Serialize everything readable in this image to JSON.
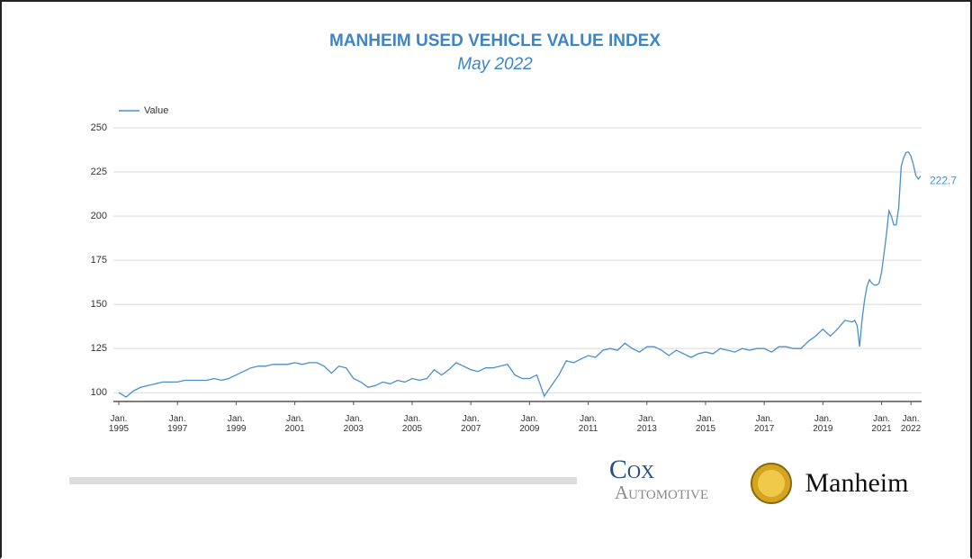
{
  "chart_data": {
    "type": "line",
    "title": "MANHEIM USED VEHICLE VALUE INDEX",
    "subtitle": "May 2022",
    "x": [
      "1995-01",
      "1995-04",
      "1995-07",
      "1995-10",
      "1996-01",
      "1996-04",
      "1996-07",
      "1996-10",
      "1997-01",
      "1997-04",
      "1997-07",
      "1997-10",
      "1998-01",
      "1998-04",
      "1998-07",
      "1998-10",
      "1999-01",
      "1999-04",
      "1999-07",
      "1999-10",
      "2000-01",
      "2000-04",
      "2000-07",
      "2000-10",
      "2001-01",
      "2001-04",
      "2001-07",
      "2001-10",
      "2002-01",
      "2002-04",
      "2002-07",
      "2002-10",
      "2003-01",
      "2003-04",
      "2003-07",
      "2003-10",
      "2004-01",
      "2004-04",
      "2004-07",
      "2004-10",
      "2005-01",
      "2005-04",
      "2005-07",
      "2005-10",
      "2006-01",
      "2006-04",
      "2006-07",
      "2006-10",
      "2007-01",
      "2007-04",
      "2007-07",
      "2007-10",
      "2008-01",
      "2008-04",
      "2008-07",
      "2008-10",
      "2009-01",
      "2009-04",
      "2009-07",
      "2009-10",
      "2010-01",
      "2010-04",
      "2010-07",
      "2010-10",
      "2011-01",
      "2011-04",
      "2011-07",
      "2011-10",
      "2012-01",
      "2012-04",
      "2012-07",
      "2012-10",
      "2013-01",
      "2013-04",
      "2013-07",
      "2013-10",
      "2014-01",
      "2014-04",
      "2014-07",
      "2014-10",
      "2015-01",
      "2015-04",
      "2015-07",
      "2015-10",
      "2016-01",
      "2016-04",
      "2016-07",
      "2016-10",
      "2017-01",
      "2017-04",
      "2017-07",
      "2017-10",
      "2018-01",
      "2018-04",
      "2018-07",
      "2018-10",
      "2019-01",
      "2019-04",
      "2019-07",
      "2019-10",
      "2020-01",
      "2020-02",
      "2020-03",
      "2020-04",
      "2020-05",
      "2020-06",
      "2020-07",
      "2020-08",
      "2020-09",
      "2020-10",
      "2020-11",
      "2020-12",
      "2021-01",
      "2021-02",
      "2021-03",
      "2021-04",
      "2021-05",
      "2021-06",
      "2021-07",
      "2021-08",
      "2021-09",
      "2021-10",
      "2021-11",
      "2021-12",
      "2022-01",
      "2022-02",
      "2022-03",
      "2022-04",
      "2022-05"
    ],
    "series": [
      {
        "name": "Value",
        "color": "#4a8fc9",
        "values": [
          100,
          97.5,
          101,
          103,
          104,
          105,
          106,
          106,
          106,
          107,
          107,
          107,
          107,
          108,
          107,
          108,
          110,
          112,
          114,
          115,
          115,
          116,
          116,
          116,
          117,
          116,
          117,
          117,
          115,
          111,
          115,
          114,
          108,
          106,
          103,
          104,
          106,
          105,
          107,
          106,
          108,
          107,
          108,
          113,
          110,
          113,
          117,
          115,
          113,
          112,
          114,
          114,
          115,
          116,
          110,
          108,
          108,
          110,
          98,
          104,
          110,
          118,
          117,
          119,
          121,
          120,
          124,
          125,
          124,
          128,
          125,
          123,
          126,
          126,
          124,
          121,
          124,
          122,
          120,
          122,
          123,
          122,
          125,
          124,
          123,
          125,
          124,
          125,
          125,
          123,
          126,
          126,
          125,
          125,
          129,
          132,
          136,
          132,
          136,
          141,
          140,
          141,
          138,
          126,
          141,
          152,
          160,
          164,
          162,
          161,
          161,
          162,
          168,
          179,
          190,
          203,
          200,
          195,
          195,
          205,
          228,
          233,
          236,
          236.3,
          234,
          229,
          223,
          221,
          222.7
        ]
      }
    ],
    "xlim": [
      "1995-01",
      "2022-05"
    ],
    "xticks": [
      {
        "value": "1995-01",
        "label": "Jan. 1995"
      },
      {
        "value": "1997-01",
        "label": "Jan. 1997"
      },
      {
        "value": "1999-01",
        "label": "Jan. 1999"
      },
      {
        "value": "2001-01",
        "label": "Jan. 2001"
      },
      {
        "value": "2003-01",
        "label": "Jan. 2003"
      },
      {
        "value": "2005-01",
        "label": "Jan. 2005"
      },
      {
        "value": "2007-01",
        "label": "Jan. 2007"
      },
      {
        "value": "2009-01",
        "label": "Jan. 2009"
      },
      {
        "value": "2011-01",
        "label": "Jan. 2011"
      },
      {
        "value": "2013-01",
        "label": "Jan. 2013"
      },
      {
        "value": "2015-01",
        "label": "Jan. 2015"
      },
      {
        "value": "2017-01",
        "label": "Jan. 2017"
      },
      {
        "value": "2019-01",
        "label": "Jan. 2019"
      },
      {
        "value": "2021-01",
        "label": "Jan. 2021"
      },
      {
        "value": "2022-01",
        "label": "Jan. 2022"
      }
    ],
    "ylim": [
      95,
      250
    ],
    "yticks": [
      100,
      125,
      150,
      175,
      200,
      225,
      250
    ],
    "grid": true,
    "legend": "top-left"
  },
  "footer": {
    "cox": "Cox",
    "automotive": "Automotive",
    "manheim": "Manheim"
  }
}
